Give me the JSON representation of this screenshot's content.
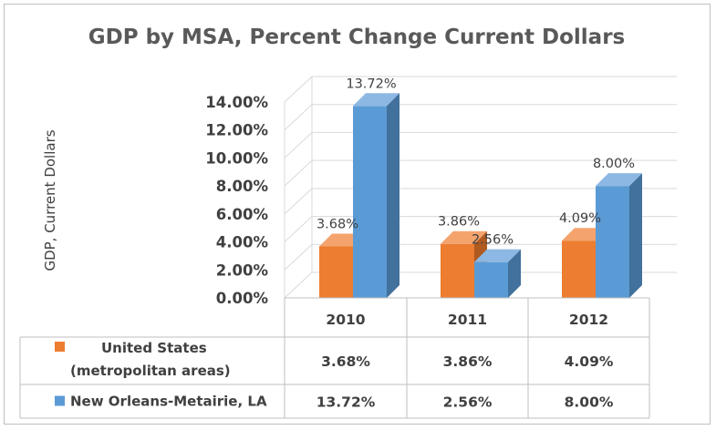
{
  "chart_data": {
    "type": "bar",
    "title": "GDP by MSA, Percent Change Current Dollars",
    "ylabel": "GDP, Current Dollars",
    "xlabel": "",
    "categories": [
      "2010",
      "2011",
      "2012"
    ],
    "y_ticks": [
      "0.00%",
      "2.00%",
      "4.00%",
      "6.00%",
      "8.00%",
      "10.00%",
      "12.00%",
      "14.00%"
    ],
    "ylim": [
      0,
      14
    ],
    "grid": true,
    "style": "3d-clustered-column-with-data-table",
    "series": [
      {
        "name": "United States (metropolitan areas)",
        "name_lines": [
          "United States",
          "(metropolitan areas)"
        ],
        "values": [
          3.68,
          3.86,
          4.09
        ],
        "labels": [
          "3.68%",
          "3.86%",
          "4.09%"
        ],
        "color": "#ED7D31",
        "side_color": "#AE5A21",
        "top_color": "#F4A36D"
      },
      {
        "name": "New Orleans-Metairie, LA",
        "name_lines": [
          "New Orleans-Metairie, LA"
        ],
        "values": [
          13.72,
          2.56,
          8.0
        ],
        "labels": [
          "13.72%",
          "2.56%",
          "8.00%"
        ],
        "color": "#5B9BD5",
        "side_color": "#41719C",
        "top_color": "#8DB8E3"
      }
    ]
  }
}
